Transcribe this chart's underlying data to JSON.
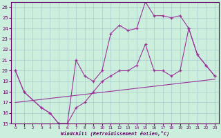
{
  "xlabel": "Windchill (Refroidissement éolien,°C)",
  "bg_color": "#cceedd",
  "grid_color": "#aacccc",
  "line_color": "#993399",
  "xlim": [
    -0.5,
    23.5
  ],
  "ylim": [
    15,
    26.5
  ],
  "xticks": [
    0,
    1,
    2,
    3,
    4,
    5,
    6,
    7,
    8,
    9,
    10,
    11,
    12,
    13,
    14,
    15,
    16,
    17,
    18,
    19,
    20,
    21,
    22,
    23
  ],
  "yticks": [
    15,
    16,
    17,
    18,
    19,
    20,
    21,
    22,
    23,
    24,
    25,
    26
  ],
  "line1_x": [
    0,
    1,
    3,
    4,
    5,
    6,
    7,
    8,
    9,
    10,
    11,
    12,
    13,
    14,
    15,
    16,
    17,
    18,
    19,
    20,
    21,
    22,
    23
  ],
  "line1_y": [
    20.0,
    18.0,
    16.5,
    16.0,
    15.0,
    15.0,
    21.0,
    19.5,
    19.0,
    20.0,
    23.5,
    24.3,
    23.8,
    24.0,
    26.5,
    25.2,
    25.2,
    25.0,
    25.2,
    24.0,
    21.5,
    20.5,
    19.5
  ],
  "line2_x": [
    0,
    1,
    3,
    4,
    5,
    6,
    7,
    8,
    9,
    10,
    11,
    12,
    13,
    14,
    15,
    16,
    17,
    18,
    19,
    20,
    21,
    22,
    23
  ],
  "line2_y": [
    20.0,
    18.0,
    16.5,
    16.0,
    15.0,
    15.0,
    16.5,
    17.0,
    18.0,
    19.0,
    19.5,
    20.0,
    20.0,
    20.5,
    22.5,
    20.0,
    20.0,
    19.5,
    20.0,
    24.0,
    21.5,
    20.5,
    19.5
  ],
  "line3_x": [
    0,
    23
  ],
  "line3_y": [
    17.0,
    19.2
  ]
}
